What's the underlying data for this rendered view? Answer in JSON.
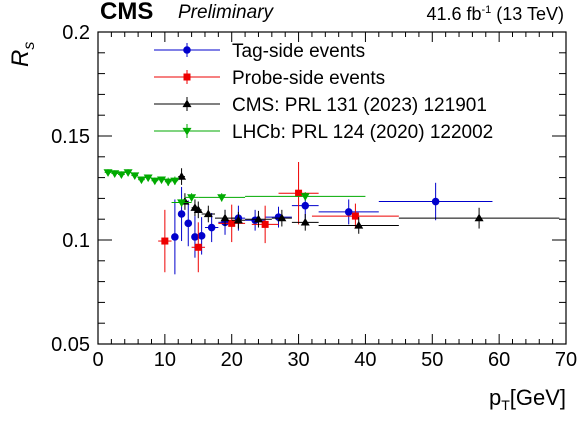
{
  "header": {
    "experiment": "CMS",
    "status": "Preliminary",
    "luminosity": "41.6 fb",
    "lumi_exponent": "-1",
    "energy": "(13 TeV)"
  },
  "chart_data": {
    "type": "scatter",
    "xlabel": "p",
    "xlabel_sub": "T",
    "xlabel_unit": "[GeV]",
    "ylabel": "R",
    "ylabel_sub": "s",
    "xlim": [
      0,
      70
    ],
    "ylim": [
      0.05,
      0.2
    ],
    "xticks": [
      0,
      10,
      20,
      30,
      40,
      50,
      60,
      70
    ],
    "yticks": [
      0.05,
      0.1,
      0.15,
      0.2
    ],
    "ytick_labels": [
      "0.05",
      "0.1",
      "0.15",
      "0.2"
    ],
    "legend_position": "top",
    "series": [
      {
        "name": "Tag-side events",
        "color": "#0000cc",
        "marker": "circle",
        "points": [
          {
            "x": 11.5,
            "y": 0.1015,
            "xerr": 0.5,
            "yerr": 0.018
          },
          {
            "x": 12.5,
            "y": 0.1125,
            "xerr": 0.5,
            "yerr": 0.013
          },
          {
            "x": 13.5,
            "y": 0.108,
            "xerr": 0.5,
            "yerr": 0.011
          },
          {
            "x": 14.5,
            "y": 0.1015,
            "xerr": 0.5,
            "yerr": 0.01
          },
          {
            "x": 15.5,
            "y": 0.102,
            "xerr": 0.5,
            "yerr": 0.009
          },
          {
            "x": 17.0,
            "y": 0.106,
            "xerr": 1.0,
            "yerr": 0.007
          },
          {
            "x": 19.0,
            "y": 0.1085,
            "xerr": 1.0,
            "yerr": 0.006
          },
          {
            "x": 21.0,
            "y": 0.1105,
            "xerr": 1.0,
            "yerr": 0.006
          },
          {
            "x": 23.5,
            "y": 0.1095,
            "xerr": 1.5,
            "yerr": 0.005
          },
          {
            "x": 27.0,
            "y": 0.111,
            "xerr": 2.0,
            "yerr": 0.005
          },
          {
            "x": 31.0,
            "y": 0.1165,
            "xerr": 2.0,
            "yerr": 0.006
          },
          {
            "x": 37.5,
            "y": 0.1135,
            "xerr": 4.5,
            "yerr": 0.006
          },
          {
            "x": 50.5,
            "y": 0.1185,
            "xerr": 8.5,
            "yerr": 0.009
          }
        ]
      },
      {
        "name": "Probe-side events",
        "color": "#ee0000",
        "marker": "square",
        "points": [
          {
            "x": 10.0,
            "y": 0.0995,
            "xerr": 1.0,
            "yerr": 0.015
          },
          {
            "x": 15.0,
            "y": 0.0965,
            "xerr": 1.0,
            "yerr": 0.012
          },
          {
            "x": 20.0,
            "y": 0.108,
            "xerr": 2.0,
            "yerr": 0.009
          },
          {
            "x": 25.0,
            "y": 0.1075,
            "xerr": 2.0,
            "yerr": 0.009
          },
          {
            "x": 30.0,
            "y": 0.1225,
            "xerr": 3.0,
            "yerr": 0.015
          },
          {
            "x": 38.5,
            "y": 0.1115,
            "xerr": 6.5,
            "yerr": 0.006
          }
        ]
      },
      {
        "name": "CMS: PRL 131 (2023) 121901",
        "color": "#000000",
        "marker": "triangle-up",
        "points": [
          {
            "x": 12.5,
            "y": 0.1305,
            "xerr": 0.5,
            "yerr": 0.004
          },
          {
            "x": 13.0,
            "y": 0.1185,
            "xerr": 0.5,
            "yerr": 0.004
          },
          {
            "x": 14.5,
            "y": 0.1155,
            "xerr": 0.5,
            "yerr": 0.004
          },
          {
            "x": 15.0,
            "y": 0.1145,
            "xerr": 0.5,
            "yerr": 0.004
          },
          {
            "x": 16.5,
            "y": 0.1125,
            "xerr": 1.0,
            "yerr": 0.004
          },
          {
            "x": 19.0,
            "y": 0.1105,
            "xerr": 1.5,
            "yerr": 0.004
          },
          {
            "x": 21.0,
            "y": 0.1095,
            "xerr": 1.0,
            "yerr": 0.004
          },
          {
            "x": 24.0,
            "y": 0.11,
            "xerr": 2.0,
            "yerr": 0.004
          },
          {
            "x": 27.5,
            "y": 0.1105,
            "xerr": 1.5,
            "yerr": 0.004
          },
          {
            "x": 31.0,
            "y": 0.1085,
            "xerr": 2.0,
            "yerr": 0.004
          },
          {
            "x": 39.0,
            "y": 0.107,
            "xerr": 6.0,
            "yerr": 0.004
          },
          {
            "x": 57.0,
            "y": 0.1105,
            "xerr": 12.0,
            "yerr": 0.005
          }
        ]
      },
      {
        "name": "LHCb: PRL 124 (2020) 122002",
        "color": "#00aa00",
        "marker": "triangle-down",
        "points": [
          {
            "x": 1.5,
            "y": 0.1325,
            "xerr": 0.5,
            "yerr": 0.0015
          },
          {
            "x": 2.5,
            "y": 0.132,
            "xerr": 0.5,
            "yerr": 0.0015
          },
          {
            "x": 3.5,
            "y": 0.1315,
            "xerr": 0.5,
            "yerr": 0.0015
          },
          {
            "x": 4.5,
            "y": 0.1325,
            "xerr": 0.5,
            "yerr": 0.0015
          },
          {
            "x": 5.5,
            "y": 0.131,
            "xerr": 0.5,
            "yerr": 0.0015
          },
          {
            "x": 6.5,
            "y": 0.129,
            "xerr": 0.5,
            "yerr": 0.0015
          },
          {
            "x": 7.5,
            "y": 0.13,
            "xerr": 0.5,
            "yerr": 0.0015
          },
          {
            "x": 8.5,
            "y": 0.1285,
            "xerr": 0.5,
            "yerr": 0.0015
          },
          {
            "x": 9.5,
            "y": 0.129,
            "xerr": 0.5,
            "yerr": 0.0015
          },
          {
            "x": 10.5,
            "y": 0.128,
            "xerr": 0.5,
            "yerr": 0.002
          },
          {
            "x": 11.5,
            "y": 0.1285,
            "xerr": 0.5,
            "yerr": 0.002
          },
          {
            "x": 12.5,
            "y": 0.118,
            "xerr": 1.5,
            "yerr": 0.002
          },
          {
            "x": 14.0,
            "y": 0.1205,
            "xerr": 1.0,
            "yerr": 0.002
          },
          {
            "x": 18.5,
            "y": 0.1205,
            "xerr": 3.5,
            "yerr": 0.002
          },
          {
            "x": 31.0,
            "y": 0.121,
            "xerr": 9.0,
            "yerr": 0.002
          }
        ]
      }
    ]
  }
}
